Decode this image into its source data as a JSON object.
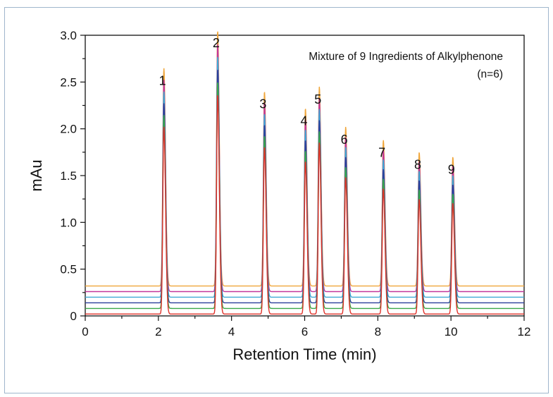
{
  "chart_data": {
    "type": "line",
    "annotation": {
      "line1": "Mixture of 9 Ingredients of Alkylphenone",
      "line2": "(n=6)"
    },
    "xlabel": "Retention Time (min)",
    "ylabel": "mAu",
    "xlim": [
      0,
      12
    ],
    "ylim": [
      0,
      3.0
    ],
    "x_ticks": [
      "0",
      "2",
      "4",
      "6",
      "8",
      "10",
      "12"
    ],
    "y_ticks": [
      "0",
      "0.5",
      "1.0",
      "1.5",
      "2.0",
      "2.5",
      "3.0"
    ],
    "peaks": [
      {
        "label": "1",
        "time": 2.15,
        "height": 2.35
      },
      {
        "label": "2",
        "time": 3.62,
        "height": 2.75
      },
      {
        "label": "3",
        "time": 4.9,
        "height": 2.1
      },
      {
        "label": "4",
        "time": 6.02,
        "height": 1.92
      },
      {
        "label": "5",
        "time": 6.4,
        "height": 2.15
      },
      {
        "label": "6",
        "time": 7.12,
        "height": 1.72
      },
      {
        "label": "7",
        "time": 8.15,
        "height": 1.58
      },
      {
        "label": "8",
        "time": 9.13,
        "height": 1.45
      },
      {
        "label": "9",
        "time": 10.05,
        "height": 1.4
      }
    ],
    "series": [
      {
        "color": "#f0a63a",
        "baseline": 0.32
      },
      {
        "color": "#c2389a",
        "baseline": 0.26
      },
      {
        "color": "#3fa9d6",
        "baseline": 0.2
      },
      {
        "color": "#2a3f9a",
        "baseline": 0.14
      },
      {
        "color": "#3aa84a",
        "baseline": 0.08
      },
      {
        "color": "#e0322a",
        "baseline": 0.02
      }
    ],
    "grid": false,
    "legend": "none"
  }
}
